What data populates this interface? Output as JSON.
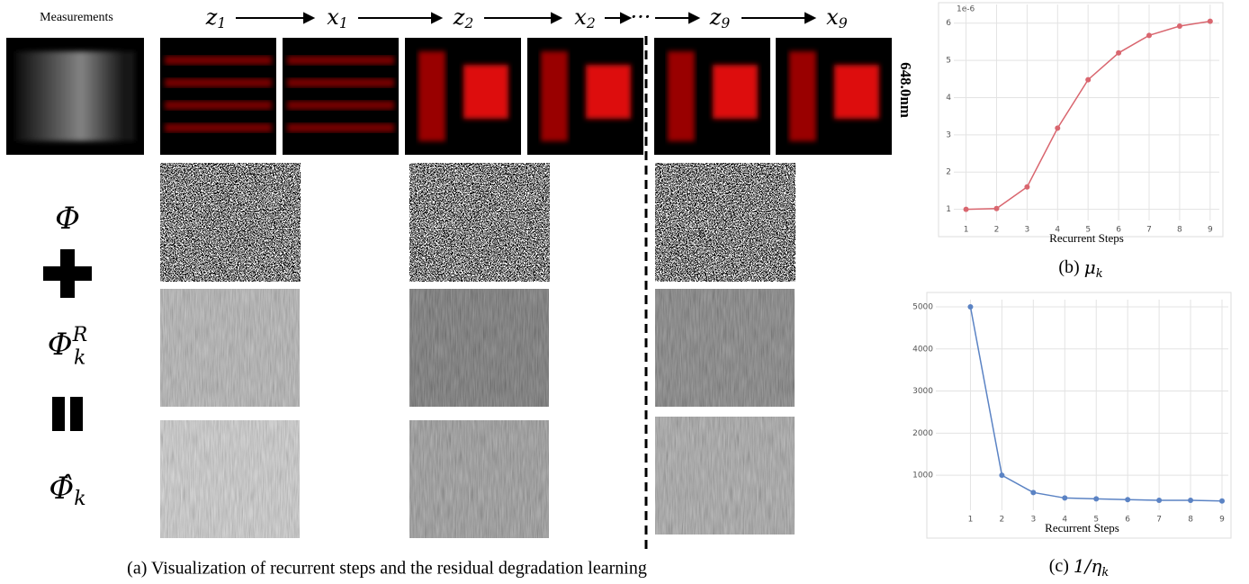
{
  "panel_a": {
    "measurements_label": "Measurements",
    "sequence": [
      {
        "symbol": "z",
        "subscript": "1"
      },
      {
        "symbol": "x",
        "subscript": "1"
      },
      {
        "symbol": "z",
        "subscript": "2"
      },
      {
        "symbol": "x",
        "subscript": "2"
      },
      {
        "symbol": "···"
      },
      {
        "symbol": "z",
        "subscript": "9"
      },
      {
        "symbol": "x",
        "subscript": "9"
      }
    ],
    "wavelength": "648.0nm",
    "rows": [
      {
        "symbol": "Φ"
      },
      {
        "symbol": "Φ",
        "subscript": "k",
        "superscript": "R"
      },
      {
        "symbol": "Φ̂",
        "subscript": "k"
      }
    ],
    "caption": "(a) Visualization of recurrent steps and the residual degradation learning"
  },
  "chart_data": [
    {
      "type": "line",
      "x": [
        1,
        2,
        3,
        4,
        5,
        6,
        7,
        8,
        9
      ],
      "series": [
        {
          "color": "#d9666f",
          "values": [
            1.0,
            1.02,
            1.6,
            3.18,
            4.48,
            5.2,
            5.67,
            5.92,
            6.05
          ]
        }
      ],
      "xlim": [
        0.6,
        9.3
      ],
      "xticks": [
        1,
        2,
        3,
        4,
        5,
        6,
        7,
        8,
        9
      ],
      "ylim": [
        0.7,
        6.5
      ],
      "yticks": [
        1,
        2,
        3,
        4,
        5,
        6
      ],
      "y_offset_label": "1e-6",
      "grid": true,
      "x_label": "Recurrent Steps",
      "caption": {
        "prefix": "(b)",
        "symbol": "μ",
        "subscript": "k"
      }
    },
    {
      "type": "line",
      "x": [
        1,
        2,
        3,
        4,
        5,
        6,
        7,
        8,
        9
      ],
      "series": [
        {
          "color": "#5b83c4",
          "values": [
            5000,
            1000,
            590,
            460,
            440,
            420,
            405,
            405,
            390
          ]
        }
      ],
      "xlim": [
        -0.1,
        9.2
      ],
      "xticks": [
        1,
        2,
        3,
        4,
        5,
        6,
        7,
        8,
        9
      ],
      "ylim": [
        170,
        5170
      ],
      "yticks": [
        1000,
        2000,
        3000,
        4000,
        5000
      ],
      "grid": true,
      "x_label": "Recurrent Steps",
      "caption": {
        "prefix": "(c)",
        "symbol": "1/η",
        "subscript": "k"
      }
    }
  ]
}
